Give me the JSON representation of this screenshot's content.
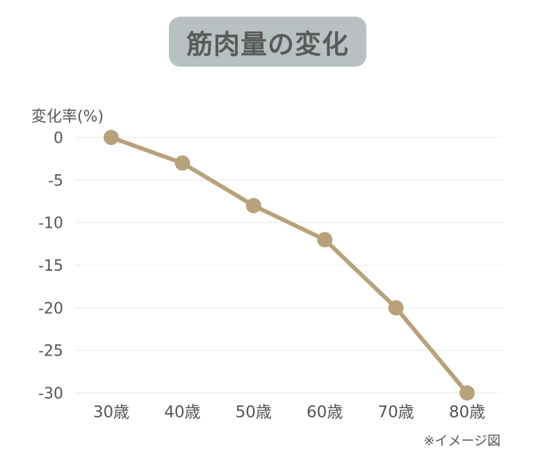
{
  "chart_data": {
    "type": "line",
    "title": "筋肉量の変化",
    "ylabel": "変化率(%)",
    "categories": [
      "30歳",
      "40歳",
      "50歳",
      "60歳",
      "70歳",
      "80歳"
    ],
    "values": [
      0,
      -3,
      -8,
      -12,
      -20,
      -30
    ],
    "yticks": [
      0,
      -5,
      -10,
      -15,
      -20,
      -25,
      -30
    ],
    "ylim": [
      -30,
      0
    ],
    "grid": true,
    "note": "※イメージ図",
    "colors": {
      "line": "#b8a27a",
      "title_bg": "#b9c0c1",
      "title_text": "#5a5a5a",
      "grid": "#e6e6e6",
      "text": "#555555"
    }
  }
}
